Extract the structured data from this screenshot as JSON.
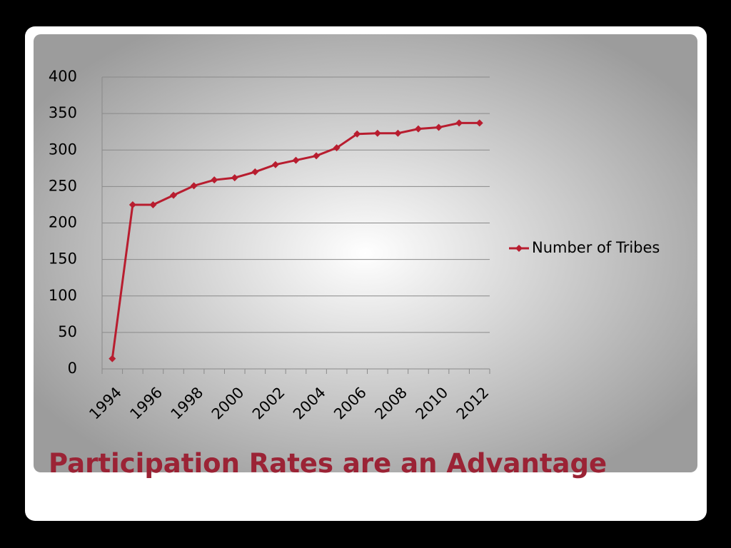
{
  "slide": {
    "title": "Participation Rates are an Advantage"
  },
  "chart_data": {
    "type": "line",
    "categories": [
      "1994",
      null,
      "1996",
      null,
      "1998",
      null,
      "2000",
      null,
      "2002",
      null,
      "2004",
      null,
      "2006",
      null,
      "2008",
      null,
      "2010",
      null,
      "2012"
    ],
    "series": [
      {
        "name": "Number of Tribes",
        "color": "#b81d2f",
        "values": [
          14,
          225,
          225,
          238,
          251,
          259,
          262,
          270,
          280,
          286,
          292,
          303,
          322,
          323,
          323,
          329,
          331,
          337,
          337
        ]
      }
    ],
    "ylim": [
      0,
      400
    ],
    "yticks": [
      0,
      50,
      100,
      150,
      200,
      250,
      300,
      350,
      400
    ],
    "grid": true,
    "legend": "right"
  }
}
